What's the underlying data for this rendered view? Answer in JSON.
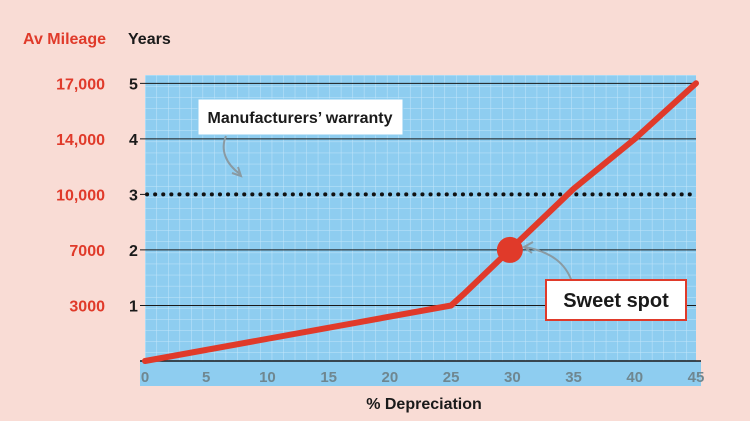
{
  "chart_data": {
    "type": "line",
    "xlabel": "% Depreciation",
    "left_axis_header": "Av Mileage",
    "right_axis_header": "Years",
    "years_ticks": [
      "1",
      "2",
      "3",
      "4",
      "5"
    ],
    "mileage_ticks": [
      "3000",
      "7000",
      "10,000",
      "14,000",
      "17,000"
    ],
    "x_ticks": [
      "0",
      "5",
      "10",
      "15",
      "20",
      "25",
      "30",
      "35",
      "40",
      "45"
    ],
    "xlim": [
      0,
      45
    ],
    "ylim": [
      0,
      5.15
    ],
    "grid": true,
    "series": [
      {
        "x": [
          0,
          25,
          26,
          35,
          40,
          45
        ],
        "y": [
          0,
          1,
          1.2,
          3.1,
          4,
          5
        ]
      }
    ],
    "reference_line": {
      "y": 3,
      "style": "dotted",
      "label": "Manufacturers’ warranty"
    },
    "highlight_point": {
      "x": 29.8,
      "y": 2,
      "label": "Sweet spot"
    },
    "colors": {
      "background": "#f9dcd5",
      "plot": "#8ecdf0",
      "line": "#e03a2a",
      "mileage_text": "#e03a2a",
      "text": "#1a1a1a"
    }
  }
}
